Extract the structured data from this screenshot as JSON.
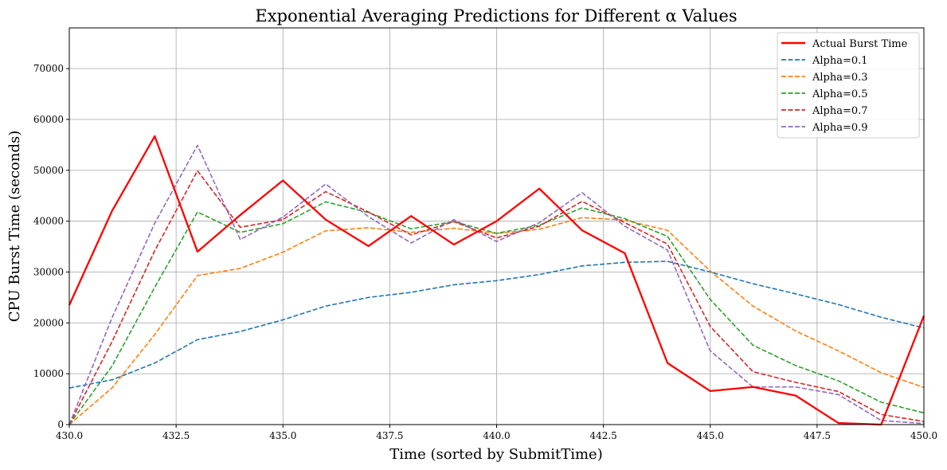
{
  "chart_data": {
    "type": "line",
    "title": "Exponential Averaging Predictions for Different α Values",
    "xlabel": "Time (sorted by SubmitTime)",
    "ylabel": "CPU Burst Time (seconds)",
    "xlim": [
      430,
      450
    ],
    "ylim": [
      0,
      78000
    ],
    "x_ticks": [
      430.0,
      432.5,
      435.0,
      437.5,
      440.0,
      442.5,
      445.0,
      447.5,
      450.0
    ],
    "x_tick_labels": [
      "430.0",
      "432.5",
      "435.0",
      "437.5",
      "440.0",
      "442.5",
      "445.0",
      "447.5",
      "450.0"
    ],
    "y_ticks": [
      0,
      10000,
      20000,
      30000,
      40000,
      50000,
      60000,
      70000
    ],
    "y_tick_labels": [
      "0",
      "10000",
      "20000",
      "30000",
      "40000",
      "50000",
      "60000",
      "70000"
    ],
    "grid": true,
    "legend_position": "top-right",
    "x": [
      430,
      431,
      432,
      433,
      434,
      435,
      436,
      437,
      438,
      439,
      440,
      441,
      442,
      443,
      444,
      445,
      446,
      447,
      448,
      449,
      450
    ],
    "series": [
      {
        "name": "Actual Burst Time",
        "color": "#ff0000",
        "style": "solid",
        "values": [
          23500,
          42000,
          56700,
          34000,
          41200,
          48000,
          40300,
          35100,
          41000,
          35400,
          40000,
          46400,
          38200,
          33700,
          12100,
          6600,
          7400,
          5700,
          300,
          0,
          21400
        ]
      },
      {
        "name": "Alpha=0.1",
        "color": "#1f77b4",
        "style": "dashed",
        "values": [
          7200,
          8800,
          12100,
          16700,
          18300,
          20600,
          23300,
          25000,
          26000,
          27500,
          28300,
          29500,
          31200,
          31900,
          32100,
          30000,
          27700,
          25700,
          23600,
          21100,
          19000
        ]
      },
      {
        "name": "Alpha=0.3",
        "color": "#ff7f0e",
        "style": "dashed",
        "values": [
          0,
          7200,
          17700,
          29300,
          30700,
          33900,
          38100,
          38700,
          37800,
          38600,
          37600,
          38400,
          40700,
          40200,
          38200,
          30200,
          23300,
          18400,
          14500,
          10200,
          7300
        ]
      },
      {
        "name": "Alpha=0.5",
        "color": "#2ca02c",
        "style": "dashed",
        "values": [
          0,
          11500,
          27000,
          41800,
          37800,
          39500,
          43800,
          41700,
          38500,
          39900,
          37600,
          39200,
          42600,
          40500,
          37000,
          24600,
          15600,
          11600,
          8600,
          4400,
          2300
        ]
      },
      {
        "name": "Alpha=0.7",
        "color": "#d62728",
        "style": "dashed",
        "values": [
          0,
          16300,
          34200,
          49900,
          38800,
          40300,
          45800,
          41800,
          37300,
          39900,
          36700,
          39000,
          43900,
          39700,
          35500,
          19300,
          10400,
          8300,
          6500,
          2000,
          600
        ]
      },
      {
        "name": "Alpha=0.9",
        "color": "#9467bd",
        "style": "dashed",
        "values": [
          0,
          21000,
          39600,
          54900,
          36400,
          40800,
          47300,
          40900,
          35700,
          40300,
          36000,
          39700,
          45600,
          39000,
          34300,
          14500,
          7400,
          7400,
          5900,
          800,
          200
        ]
      }
    ]
  }
}
